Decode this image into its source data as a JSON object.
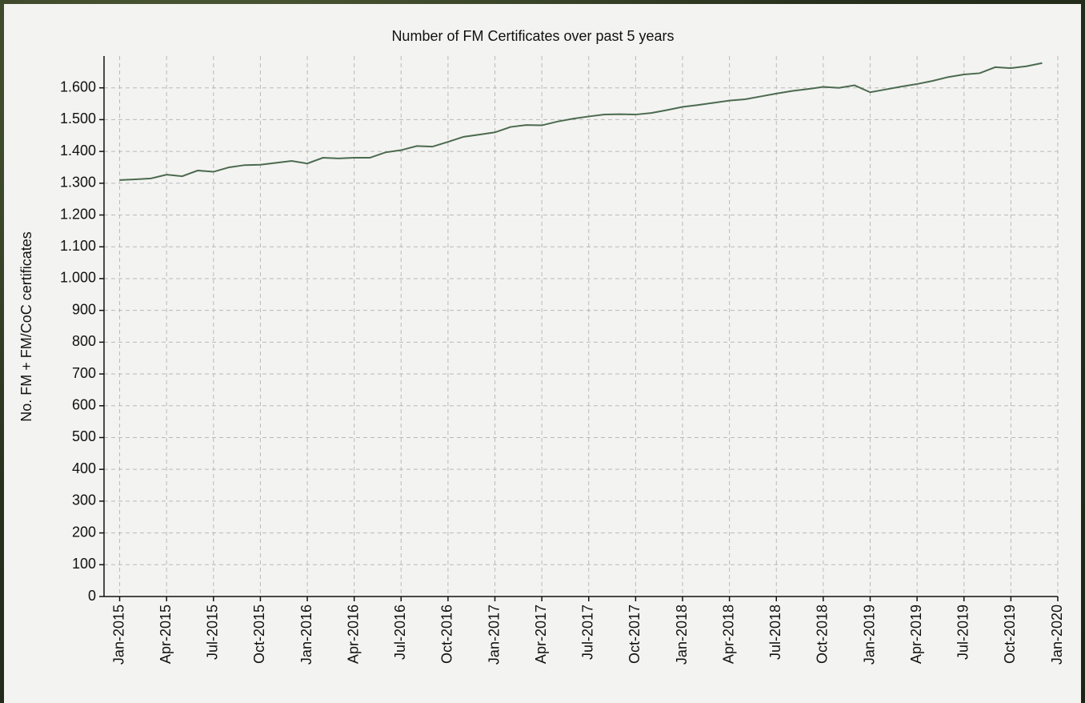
{
  "chart_data": {
    "type": "line",
    "title": "Number of FM Certificates over past 5 years",
    "y_label": "No. FM + FM/CoC certificates",
    "x": [
      "2015-01",
      "2015-02",
      "2015-03",
      "2015-04",
      "2015-05",
      "2015-06",
      "2015-07",
      "2015-08",
      "2015-09",
      "2015-10",
      "2015-11",
      "2015-12",
      "2016-01",
      "2016-02",
      "2016-03",
      "2016-04",
      "2016-05",
      "2016-06",
      "2016-07",
      "2016-08",
      "2016-09",
      "2016-10",
      "2016-11",
      "2016-12",
      "2017-01",
      "2017-02",
      "2017-03",
      "2017-04",
      "2017-05",
      "2017-06",
      "2017-07",
      "2017-08",
      "2017-09",
      "2017-10",
      "2017-11",
      "2017-12",
      "2018-01",
      "2018-02",
      "2018-03",
      "2018-04",
      "2018-05",
      "2018-06",
      "2018-07",
      "2018-08",
      "2018-09",
      "2018-10",
      "2018-11",
      "2018-12",
      "2019-01",
      "2019-02",
      "2019-03",
      "2019-04",
      "2019-05",
      "2019-06",
      "2019-07",
      "2019-08",
      "2019-09",
      "2019-10",
      "2019-11",
      "2019-12"
    ],
    "series": [
      {
        "color": "#4b6a4f",
        "values": [
          1310,
          1312,
          1315,
          1327,
          1322,
          1340,
          1336,
          1350,
          1357,
          1358,
          1364,
          1370,
          1362,
          1380,
          1378,
          1380,
          1380,
          1397,
          1404,
          1417,
          1415,
          1430,
          1446,
          1453,
          1460,
          1477,
          1483,
          1482,
          1494,
          1503,
          1510,
          1516,
          1517,
          1516,
          1521,
          1530,
          1540,
          1546,
          1553,
          1560,
          1564,
          1573,
          1582,
          1590,
          1596,
          1603,
          1600,
          1608,
          1586,
          1595,
          1604,
          1612,
          1622,
          1634,
          1642,
          1646,
          1665,
          1662,
          1668,
          1678
        ]
      }
    ],
    "xlim": [
      "2014-12",
      "2020-01"
    ],
    "xticks": [
      {
        "value": "2015-01",
        "label": "Jan-2015"
      },
      {
        "value": "2015-04",
        "label": "Apr-2015"
      },
      {
        "value": "2015-07",
        "label": "Jul-2015"
      },
      {
        "value": "2015-10",
        "label": "Oct-2015"
      },
      {
        "value": "2016-01",
        "label": "Jan-2016"
      },
      {
        "value": "2016-04",
        "label": "Apr-2016"
      },
      {
        "value": "2016-07",
        "label": "Jul-2016"
      },
      {
        "value": "2016-10",
        "label": "Oct-2016"
      },
      {
        "value": "2017-01",
        "label": "Jan-2017"
      },
      {
        "value": "2017-04",
        "label": "Apr-2017"
      },
      {
        "value": "2017-07",
        "label": "Jul-2017"
      },
      {
        "value": "2017-10",
        "label": "Oct-2017"
      },
      {
        "value": "2018-01",
        "label": "Jan-2018"
      },
      {
        "value": "2018-04",
        "label": "Apr-2018"
      },
      {
        "value": "2018-07",
        "label": "Jul-2018"
      },
      {
        "value": "2018-10",
        "label": "Oct-2018"
      },
      {
        "value": "2019-01",
        "label": "Jan-2019"
      },
      {
        "value": "2019-04",
        "label": "Apr-2019"
      },
      {
        "value": "2019-07",
        "label": "Jul-2019"
      },
      {
        "value": "2019-10",
        "label": "Oct-2019"
      },
      {
        "value": "2020-01",
        "label": "Jan-2020"
      }
    ],
    "ylim": [
      0,
      1700
    ],
    "yticks": [
      0,
      100,
      200,
      300,
      400,
      500,
      600,
      700,
      800,
      900,
      {
        "value": 1000,
        "label": "1.000"
      },
      {
        "value": 1100,
        "label": "1.100"
      },
      {
        "value": 1200,
        "label": "1.200"
      },
      {
        "value": 1300,
        "label": "1.300"
      },
      {
        "value": 1400,
        "label": "1.400"
      },
      {
        "value": 1500,
        "label": "1.500"
      },
      {
        "value": 1600,
        "label": "1.600"
      }
    ],
    "grid": true
  }
}
